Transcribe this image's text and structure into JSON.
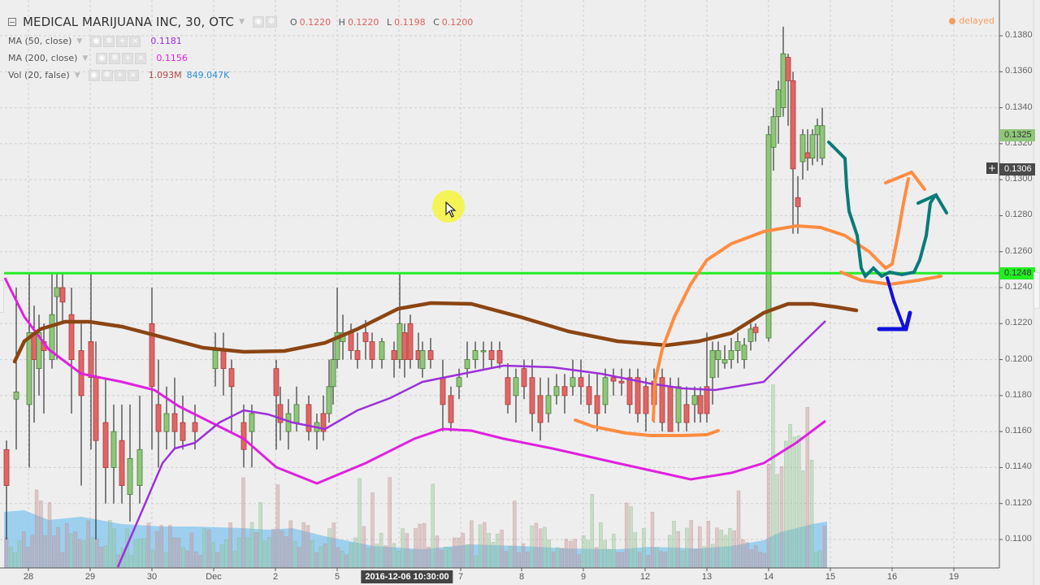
{
  "header": {
    "symbol_title": "MEDICAL MARIJUANA INC, 30, OTC",
    "ohlc": [
      {
        "label": "O",
        "value": "0.1220"
      },
      {
        "label": "H",
        "value": "0.1220"
      },
      {
        "label": "L",
        "value": "0.1198"
      },
      {
        "label": "C",
        "value": "0.1200"
      }
    ],
    "status": "delayed",
    "status_color": "#f59d5c"
  },
  "indicators": [
    {
      "label": "MA (50, close)",
      "values": [
        "0.1181"
      ],
      "colors": [
        "#9b30d9"
      ]
    },
    {
      "label": "MA (200, close)",
      "values": [
        "0.1156"
      ],
      "colors": [
        "#e020e0"
      ]
    },
    {
      "label": "Vol (20, false)",
      "values": [
        "1.093M",
        "849.047K"
      ],
      "colors": [
        "#b04848",
        "#2a90d8"
      ]
    }
  ],
  "price_axis": {
    "ticks": [
      "0.1380",
      "0.1360",
      "0.1340",
      "0.1320",
      "0.1300",
      "0.1280",
      "0.1260",
      "0.1240",
      "0.1220",
      "0.1200",
      "0.1180",
      "0.1160",
      "0.1140",
      "0.1120",
      "0.1100"
    ],
    "tags": [
      {
        "value": "0.1325",
        "bg": "#8fc77a",
        "fg": "#333333"
      },
      {
        "value": "0.1306",
        "bg": "#4a4a4a",
        "fg": "#ffffff"
      },
      {
        "value": "0.1248",
        "bg": "#22ee22",
        "fg": "#333333"
      }
    ]
  },
  "time_axis": {
    "labels": [
      "28",
      "29",
      "30",
      "Dec",
      "2",
      "5",
      "7",
      "8",
      "9",
      "12",
      "13",
      "14",
      "15",
      "16",
      "19"
    ],
    "crosshair_time": "2016-12-06 10:30:00"
  },
  "crosshair": {
    "plus": "+"
  },
  "chart_data": {
    "type": "candlestick",
    "title": "MEDICAL MARIJUANA INC, 30, OTC",
    "interval": "30",
    "exchange": "OTC",
    "ylim": [
      0.109,
      0.139
    ],
    "x_ticks": [
      "28",
      "29",
      "30",
      "Dec",
      "2",
      "5",
      "7",
      "8",
      "9",
      "12",
      "13",
      "14",
      "15",
      "16",
      "19"
    ],
    "y_ticks": [
      0.138,
      0.136,
      0.134,
      0.132,
      0.13,
      0.128,
      0.126,
      0.124,
      0.122,
      0.12,
      0.118,
      0.116,
      0.114,
      0.112,
      0.11
    ],
    "grid": true,
    "last_ohlc": {
      "open": 0.122,
      "high": 0.122,
      "low": 0.1198,
      "close": 0.12
    },
    "series": [
      {
        "name": "MA (50, close)",
        "last": 0.1181,
        "color": "#9b30d9"
      },
      {
        "name": "MA (200, close)",
        "last": 0.1156,
        "color": "#e020e0"
      },
      {
        "name": "Vol (20, false)",
        "values": [
          "1.093M",
          "849.047K"
        ]
      }
    ],
    "annotations": [
      {
        "type": "horizontal_line",
        "price": 0.1248,
        "color": "#22ee22"
      },
      {
        "type": "price_label",
        "price": 0.1325
      },
      {
        "type": "crosshair_price",
        "price": 0.1306
      },
      {
        "type": "freehand",
        "color": "#8b4513",
        "desc": "brown smoothed curve"
      },
      {
        "type": "freehand",
        "color": "#ff8c42",
        "desc": "orange base curve and arch up arrow"
      },
      {
        "type": "freehand",
        "color": "#0a7a7a",
        "desc": "teal path with up arrow"
      },
      {
        "type": "freehand",
        "color": "#1010dd",
        "desc": "blue down arrow"
      }
    ]
  }
}
